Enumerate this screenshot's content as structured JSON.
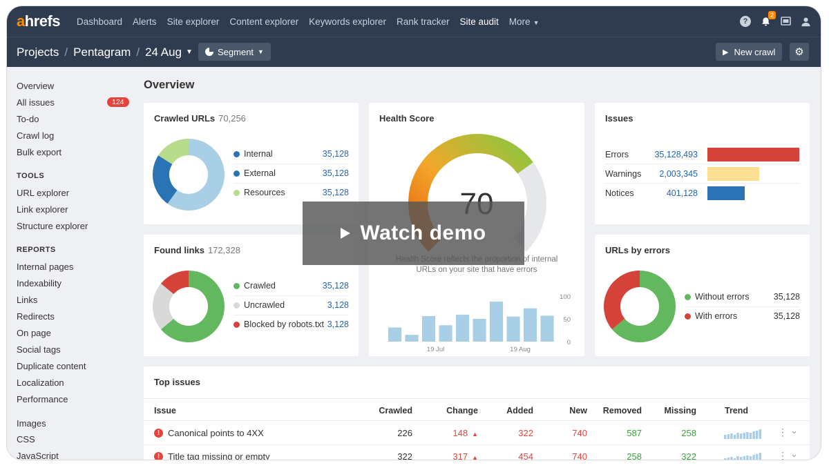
{
  "nav": {
    "logo_a": "a",
    "logo_rest": "hrefs",
    "items": [
      "Dashboard",
      "Alerts",
      "Site explorer",
      "Content explorer",
      "Keywords explorer",
      "Rank tracker",
      "Site audit",
      "More"
    ],
    "notification_count": "2"
  },
  "subheader": {
    "crumbs": [
      "Projects",
      "Pentagram",
      "24 Aug"
    ],
    "segment_label": "Segment",
    "new_crawl_label": "New crawl"
  },
  "sidebar": {
    "top_items": [
      "Overview",
      "All issues",
      "To-do",
      "Crawl log",
      "Bulk export"
    ],
    "all_issues_badge": "124",
    "tools_heading": "TOOLS",
    "tools_items": [
      "URL explorer",
      "Link explorer",
      "Structure explorer"
    ],
    "reports_heading": "REPORTS",
    "reports_items": [
      "Internal pages",
      "Indexability",
      "Links",
      "Redirects",
      "On page",
      "Social tags",
      "Duplicate content",
      "Localization",
      "Performance"
    ],
    "resources_items": [
      "Images",
      "CSS",
      "JavaScript"
    ]
  },
  "main": {
    "title": "Overview",
    "crawled": {
      "title": "Crawled URLs",
      "count": "70,256",
      "legend": [
        {
          "label": "Internal",
          "value": "35,128",
          "color": "#2a73b5"
        },
        {
          "label": "External",
          "value": "35,128",
          "color": "#2a73b5"
        },
        {
          "label": "Resources",
          "value": "35,128",
          "color": "#b6dc8c"
        }
      ]
    },
    "health": {
      "title": "Health Score",
      "score": "70",
      "subtitle_1": "Health Score reflects the proportion of internal",
      "subtitle_2": "URLs on your site that have errors",
      "y_ticks": [
        "100",
        "50",
        "0"
      ],
      "x_ticks": [
        "19 Jul",
        "19 Aug"
      ]
    },
    "issues": {
      "title": "Issues",
      "rows": [
        {
          "label": "Errors",
          "value": "35,128,493",
          "color": "#d4423a"
        },
        {
          "label": "Warnings",
          "value": "2,003,345",
          "color": "#fbdf93"
        },
        {
          "label": "Notices",
          "value": "401,128",
          "color": "#2a73b5"
        }
      ]
    },
    "found": {
      "title": "Found links",
      "count": "172,328",
      "legend": [
        {
          "label": "Crawled",
          "value": "35,128",
          "color": "#63b85f"
        },
        {
          "label": "Uncrawled",
          "value": "3,128",
          "color": "#d9d9d9"
        },
        {
          "label": "Blocked by robots.txt",
          "value": "3,128",
          "color": "#d4423a"
        }
      ]
    },
    "url_errors": {
      "title": "URLs by errors",
      "legend": [
        {
          "label": "Without errors",
          "value": "35,128",
          "color": "#63b85f"
        },
        {
          "label": "With errors",
          "value": "35,128",
          "color": "#d4423a"
        }
      ]
    },
    "top_issues": {
      "title": "Top issues",
      "columns": [
        "Issue",
        "Crawled",
        "Change",
        "Added",
        "New",
        "Removed",
        "Missing",
        "Trend"
      ],
      "rows": [
        {
          "issue": "Canonical points to 4XX",
          "crawled": "226",
          "change": "148",
          "added": "322",
          "new": "740",
          "removed": "587",
          "missing": "258"
        },
        {
          "issue": "Title tag missing or empty",
          "crawled": "322",
          "change": "317",
          "added": "454",
          "new": "740",
          "removed": "258",
          "missing": "322"
        }
      ]
    }
  },
  "overlay": {
    "watch_demo_label": "Watch demo"
  },
  "chart_data": [
    {
      "type": "pie",
      "title": "Crawled URLs",
      "categories": [
        "Internal",
        "External",
        "Resources"
      ],
      "values": [
        60,
        24,
        16
      ]
    },
    {
      "type": "pie",
      "title": "Found links",
      "categories": [
        "Crawled",
        "Uncrawled",
        "Blocked by robots.txt"
      ],
      "values": [
        64,
        22,
        14
      ]
    },
    {
      "type": "pie",
      "title": "URLs by errors",
      "categories": [
        "Without errors",
        "With errors"
      ],
      "values": [
        64,
        36
      ]
    },
    {
      "type": "bar",
      "title": "Health Score",
      "categories": [
        "",
        "",
        "",
        "",
        "",
        "",
        "",
        "",
        "",
        ""
      ],
      "values": [
        31,
        15,
        56,
        36,
        59,
        50,
        88,
        55,
        73,
        57
      ],
      "ylim": [
        0,
        100
      ],
      "x_ticks": [
        "19 Jul",
        "19 Aug"
      ]
    },
    {
      "type": "bar",
      "title": "Issues",
      "categories": [
        "Errors",
        "Warnings",
        "Notices"
      ],
      "values": [
        35128493,
        2003345,
        401128
      ]
    }
  ],
  "gauge": {
    "value": 70,
    "max": 100
  }
}
